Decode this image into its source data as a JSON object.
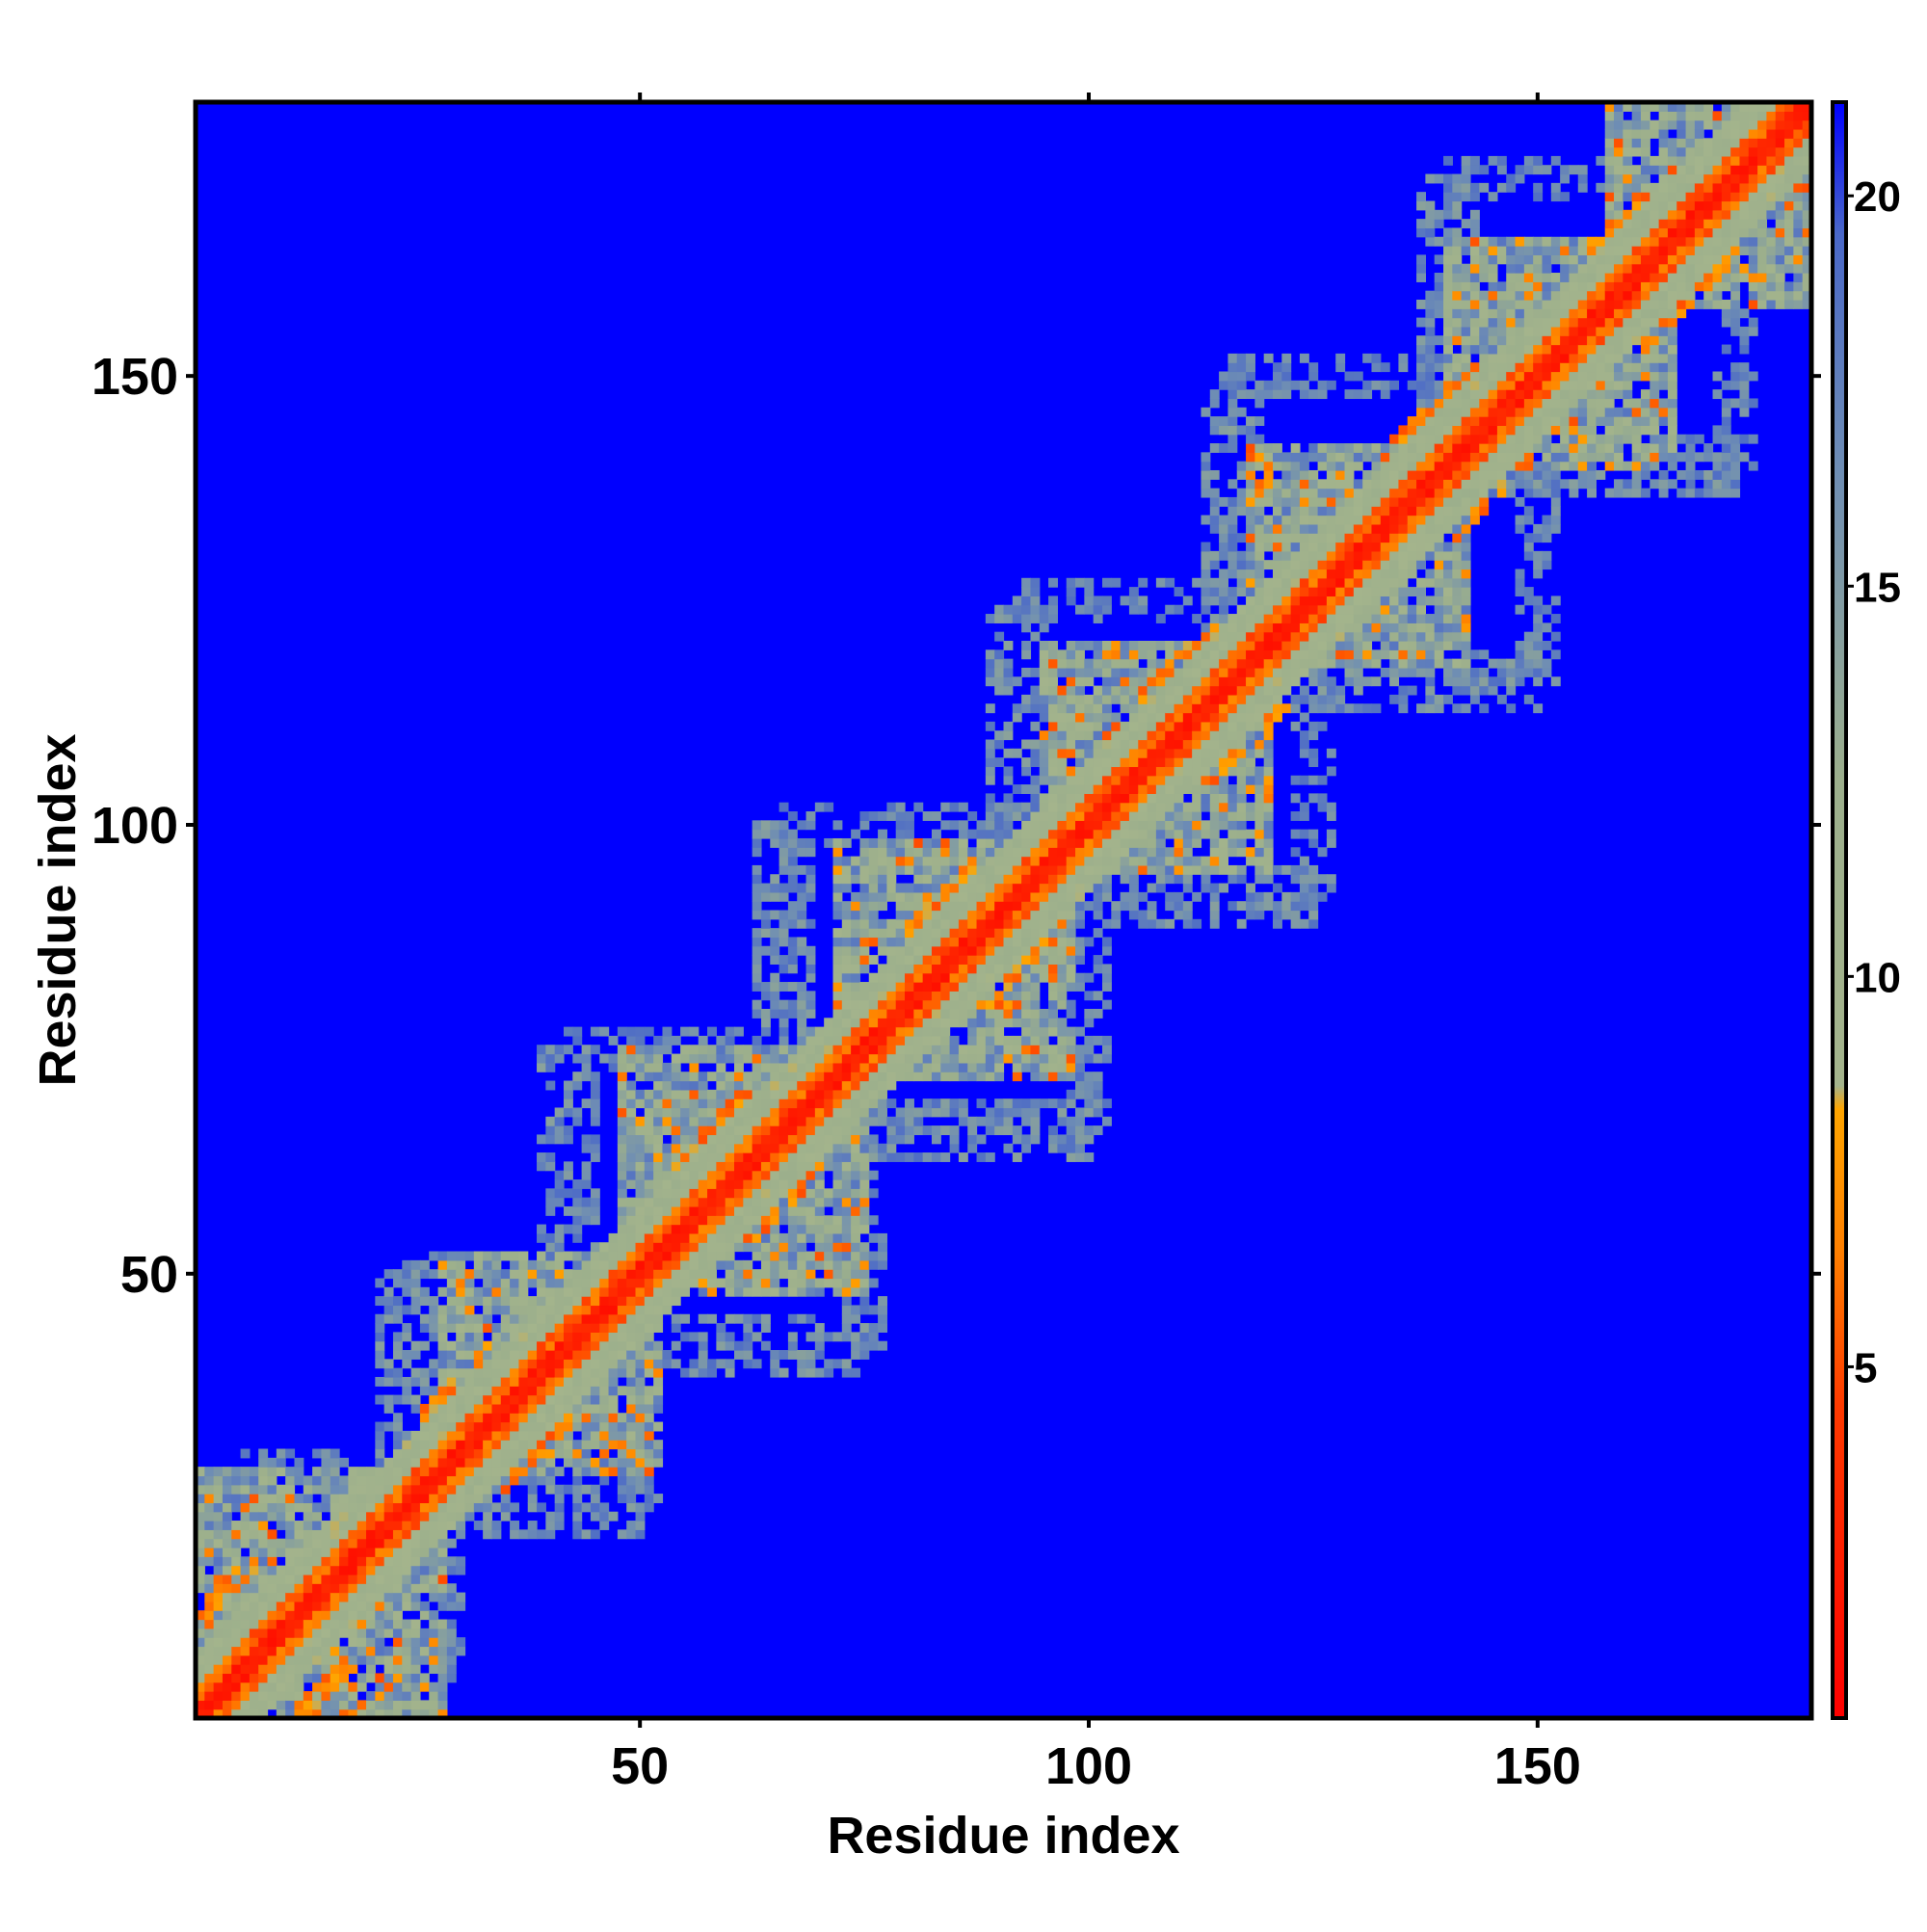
{
  "chart_data": {
    "type": "heatmap",
    "title": "",
    "xlabel": "Residue index",
    "ylabel": "Residue index",
    "xlim": [
      1,
      180
    ],
    "ylim": [
      1,
      180
    ],
    "x_ticks": [
      {
        "value": 50,
        "label": "50"
      },
      {
        "value": 100,
        "label": "100"
      },
      {
        "value": 150,
        "label": "150"
      }
    ],
    "y_ticks": [
      {
        "value": 50,
        "label": "50"
      },
      {
        "value": 100,
        "label": "100"
      },
      {
        "value": 150,
        "label": "150"
      }
    ],
    "colorbar": {
      "range": [
        0.5,
        21.2
      ],
      "ticks": [
        {
          "value": 5,
          "label": "5"
        },
        {
          "value": 10,
          "label": "10"
        },
        {
          "value": 15,
          "label": "15"
        },
        {
          "value": 20,
          "label": "20"
        }
      ],
      "stops": [
        {
          "value": 0.5,
          "color": "#ff0000"
        },
        {
          "value": 4.5,
          "color": "#ff3a00"
        },
        {
          "value": 6.5,
          "color": "#ff8000"
        },
        {
          "value": 8.3,
          "color": "#ffa500"
        },
        {
          "value": 8.6,
          "color": "#a4b48c"
        },
        {
          "value": 12.5,
          "color": "#9caf8c"
        },
        {
          "value": 16.5,
          "color": "#6e8db4"
        },
        {
          "value": 19.5,
          "color": "#4a68c8"
        },
        {
          "value": 21.2,
          "color": "#0000ff"
        }
      ]
    },
    "background_value": 21.2,
    "matrix": {
      "diagonal_band_width": 7,
      "domains": [
        {
          "start": 1,
          "end": 28
        },
        {
          "start": 28,
          "end": 52
        },
        {
          "start": 48,
          "end": 75
        },
        {
          "start": 72,
          "end": 98
        },
        {
          "start": 95,
          "end": 120
        },
        {
          "start": 118,
          "end": 142
        },
        {
          "start": 140,
          "end": 165
        },
        {
          "start": 158,
          "end": 180
        }
      ],
      "contact_arms": [
        {
          "i": 3,
          "j": 14
        },
        {
          "i": 30,
          "j": 38
        },
        {
          "i": 58,
          "j": 66
        },
        {
          "i": 84,
          "j": 92
        },
        {
          "i": 110,
          "j": 118
        },
        {
          "i": 137,
          "j": 145
        },
        {
          "i": 160,
          "j": 168
        }
      ],
      "extensions": [
        {
          "i": 4,
          "j": 28
        },
        {
          "i": 24,
          "j": 50
        },
        {
          "i": 42,
          "j": 75
        },
        {
          "i": 66,
          "j": 100
        },
        {
          "i": 92,
          "j": 125
        },
        {
          "i": 116,
          "j": 150
        },
        {
          "i": 140,
          "j": 172
        }
      ]
    }
  }
}
